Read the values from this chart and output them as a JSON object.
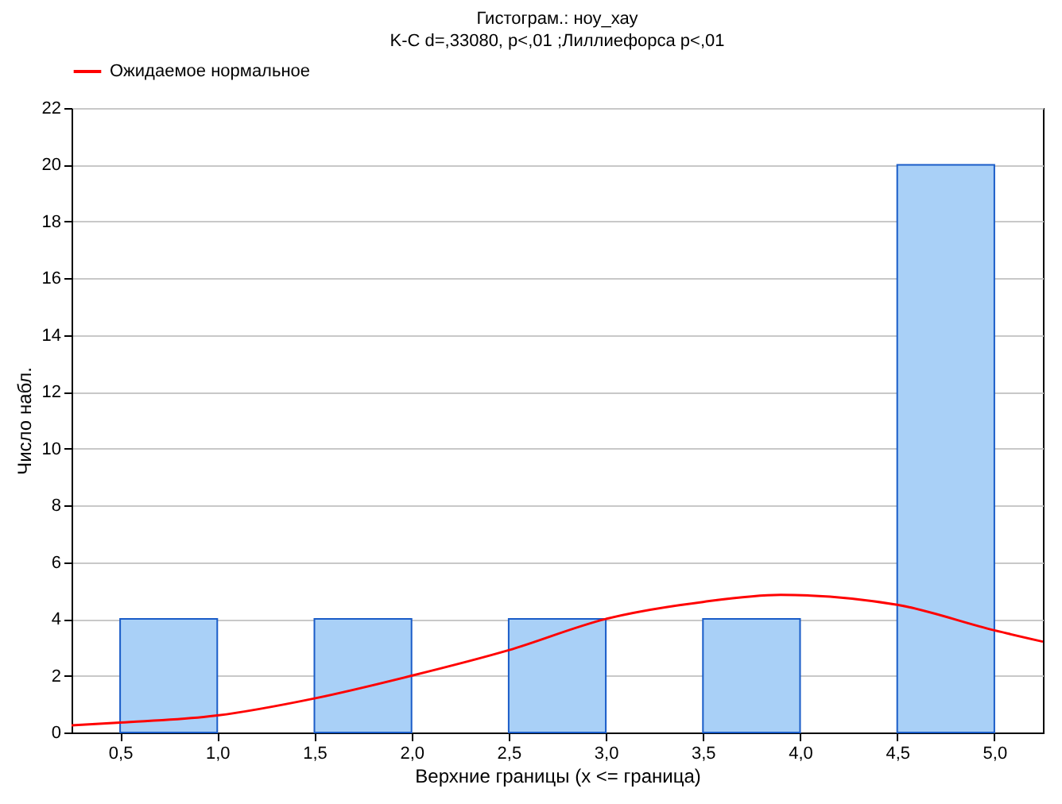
{
  "chart_data": {
    "type": "histogram",
    "title": "Гистограм.: ноу_хау",
    "subtitle": "K-C d=,33080, p<,01 ;Лиллиефорса p<,01",
    "xlabel": "Верхние границы (x <= граница)",
    "ylabel": "Число набл.",
    "bins": [
      0.5,
      1.0,
      1.5,
      2.0,
      2.5,
      3.0,
      3.5,
      4.0,
      4.5,
      5.0
    ],
    "values": [
      4,
      0,
      4,
      0,
      4,
      0,
      4,
      0,
      20
    ],
    "color": "#a9d0f7",
    "series": [
      {
        "type": "line",
        "name": "Ожидаемое нормальное",
        "color": "#ff0000",
        "x": [
          0.25,
          0.5,
          1.0,
          1.5,
          2.0,
          2.5,
          3.0,
          3.5,
          3.9,
          4.5,
          5.0,
          5.25
        ],
        "values": [
          0.25,
          0.35,
          0.6,
          1.2,
          2.0,
          2.9,
          4.0,
          4.6,
          4.85,
          4.5,
          3.6,
          3.2
        ]
      }
    ],
    "xlim": [
      0.25,
      5.25
    ],
    "xticks": [
      {
        "value": 0.5,
        "label": "0,5"
      },
      {
        "value": 1.0,
        "label": "1,0"
      },
      {
        "value": 1.5,
        "label": "1,5"
      },
      {
        "value": 2.0,
        "label": "2,0"
      },
      {
        "value": 2.5,
        "label": "2,5"
      },
      {
        "value": 3.0,
        "label": "3,0"
      },
      {
        "value": 3.5,
        "label": "3,5"
      },
      {
        "value": 4.0,
        "label": "4,0"
      },
      {
        "value": 4.5,
        "label": "4,5"
      },
      {
        "value": 5.0,
        "label": "5,0"
      }
    ],
    "ylim": [
      0,
      22
    ],
    "yticks": [
      0,
      2,
      4,
      6,
      8,
      10,
      12,
      14,
      16,
      18,
      20,
      22
    ],
    "grid": "y",
    "legend": "top"
  }
}
